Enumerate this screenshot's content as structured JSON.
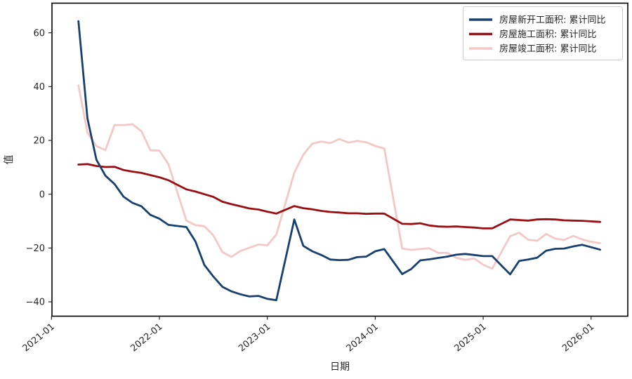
{
  "chart_data": {
    "type": "line",
    "title": "",
    "xlabel": "日期",
    "ylabel": "值",
    "grid": false,
    "legend_position": "upper right",
    "x_tick_labels": [
      "2021-01",
      "2022-01",
      "2023-01",
      "2024-01",
      "2025-01",
      "2026-01"
    ],
    "y_ticks": [
      60,
      40,
      20,
      0,
      -20,
      -40
    ],
    "ylim": [
      -45.5,
      71
    ],
    "x": [
      "2021-02",
      "2021-03",
      "2021-04",
      "2021-05",
      "2021-06",
      "2021-07",
      "2021-08",
      "2021-09",
      "2021-10",
      "2021-11",
      "2021-12",
      "2022-02",
      "2022-03",
      "2022-04",
      "2022-05",
      "2022-06",
      "2022-07",
      "2022-08",
      "2022-09",
      "2022-10",
      "2022-11",
      "2022-12",
      "2023-02",
      "2023-03",
      "2023-04",
      "2023-05",
      "2023-06",
      "2023-07",
      "2023-08",
      "2023-09",
      "2023-10",
      "2023-11",
      "2023-12",
      "2024-02",
      "2024-03",
      "2024-04",
      "2024-05",
      "2024-06",
      "2024-07",
      "2024-08",
      "2024-09",
      "2024-10",
      "2024-11",
      "2024-12",
      "2025-02",
      "2025-03",
      "2025-04",
      "2025-05",
      "2025-06",
      "2025-07",
      "2025-08",
      "2025-09",
      "2025-10",
      "2025-11",
      "2025-12"
    ],
    "series": [
      {
        "name": "房屋新开工面积: 累计同比",
        "color": "#17406f",
        "values": [
          64.3,
          28.2,
          12.8,
          6.9,
          3.8,
          -0.9,
          -3.2,
          -4.5,
          -7.7,
          -9.1,
          -11.4,
          -12.2,
          -17.5,
          -26.3,
          -30.6,
          -34.4,
          -36.1,
          -37.2,
          -38.0,
          -37.8,
          -38.9,
          -39.4,
          -9.4,
          -19.2,
          -21.2,
          -22.6,
          -24.3,
          -24.5,
          -24.4,
          -23.4,
          -23.2,
          -21.2,
          -20.4,
          -29.7,
          -27.8,
          -24.6,
          -24.2,
          -23.7,
          -23.2,
          -22.5,
          -22.2,
          -22.6,
          -23.0,
          -23.0,
          -29.8,
          -24.8,
          -24.3,
          -23.6,
          -21.0,
          -20.3,
          -20.2,
          -19.4,
          -18.8,
          -19.7,
          -20.6
        ]
      },
      {
        "name": "房屋施工面积: 累计同比",
        "color": "#9a0f14",
        "values": [
          11.0,
          11.2,
          10.5,
          10.1,
          10.2,
          9.0,
          8.4,
          7.9,
          7.1,
          6.3,
          5.2,
          1.8,
          1.0,
          0.0,
          -1.0,
          -2.8,
          -3.7,
          -4.5,
          -5.3,
          -5.7,
          -6.5,
          -7.2,
          -4.4,
          -5.2,
          -5.6,
          -6.2,
          -6.6,
          -6.8,
          -7.1,
          -7.1,
          -7.3,
          -7.2,
          -7.2,
          -11.0,
          -11.1,
          -10.8,
          -11.6,
          -12.0,
          -12.1,
          -12.0,
          -12.2,
          -12.4,
          -12.7,
          -12.7,
          -9.4,
          -9.6,
          -9.8,
          -9.4,
          -9.3,
          -9.4,
          -9.7,
          -9.8,
          -9.9,
          -10.1,
          -10.3
        ]
      },
      {
        "name": "房屋竣工面积: 累计同比",
        "color": "#f5c8c8",
        "values": [
          40.4,
          22.9,
          17.9,
          16.4,
          25.7,
          25.7,
          26.0,
          23.4,
          16.3,
          16.2,
          11.2,
          -9.8,
          -11.5,
          -11.9,
          -15.3,
          -21.5,
          -23.3,
          -21.1,
          -19.9,
          -18.7,
          -19.0,
          -15.0,
          8.0,
          14.7,
          18.8,
          19.6,
          19.0,
          20.5,
          19.2,
          19.8,
          19.3,
          17.9,
          17.0,
          -20.2,
          -20.7,
          -20.4,
          -20.1,
          -21.8,
          -21.8,
          -23.6,
          -24.4,
          -23.9,
          -26.2,
          -27.7,
          -15.6,
          -14.3,
          -16.9,
          -17.3,
          -14.8,
          -16.5,
          -17.0,
          -15.5,
          -16.8,
          -17.7,
          -18.2
        ]
      }
    ]
  }
}
